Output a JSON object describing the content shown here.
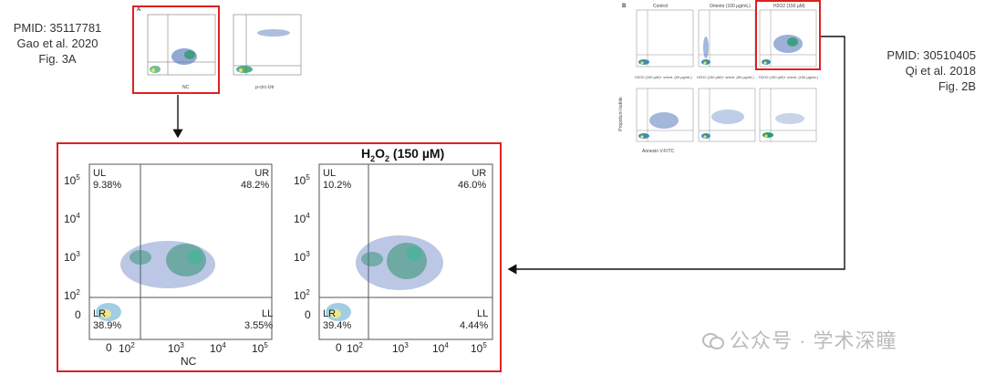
{
  "left_citation": {
    "pmid": "PMID: 35117781",
    "author": "Gao et al. 2020",
    "figure": "Fig. 3A"
  },
  "right_citation": {
    "pmid": "PMID: 30510405",
    "author": "Qi et al. 2018",
    "figure": "Fig. 2B"
  },
  "left_thumb": {
    "panel_letter": "A",
    "plot1": {
      "ul": "UL 9.38%",
      "ur": "UR 48.2%",
      "ll": "LR 38.9%",
      "lr": "LL 3.55%",
      "xlabel": "NC"
    },
    "plot2": {
      "ul": "UL 0.00%",
      "ur": "UR 0.00%",
      "ll": "LR",
      "lr": "LL 0.00%",
      "xlabel": "p-circ-Utr"
    }
  },
  "right_thumb": {
    "panel_letter": "B",
    "top_titles": [
      "Control",
      "Oriento (100 µg/mL)",
      "H2O2 (150 µM)"
    ],
    "bottom_titles": [
      "H2O2 (150 µM)+ orient. (50 µg/mL)",
      "H2O2 (150 µM)+ orient. (80 µg/mL)",
      "H2O2 (150 µM)+ orient. (150 µg/mL)"
    ],
    "xlabel": "Annexin V-FITC",
    "ylabel": "Propidium Iodide"
  },
  "zoom": {
    "title_main": "H",
    "title_sub1": "2",
    "title_mid": "O",
    "title_sub2": "2",
    "title_rest": " (150 µM)",
    "plot1": {
      "ul_label": "UL",
      "ul_value": "9.38%",
      "ur_label": "UR",
      "ur_value": "48.2%",
      "ll_label": "LR",
      "ll_value": "38.9%",
      "lr_label": "LL",
      "lr_value": "3.55%",
      "xlabel": "NC"
    },
    "plot2": {
      "ul_label": "UL",
      "ul_value": "10.2%",
      "ur_label": "UR",
      "ur_value": "46.0%",
      "ll_label": "LR",
      "ll_value": "39.4%",
      "lr_label": "LL",
      "lr_value": "4.44%"
    },
    "yticks": [
      "10",
      "10",
      "10",
      "10",
      "0"
    ],
    "ytick_exp": [
      "5",
      "4",
      "3",
      "2",
      ""
    ],
    "xticks": [
      "0",
      "10",
      "10",
      "10",
      "10"
    ],
    "xtick_exp": [
      "",
      "2",
      "3",
      "4",
      "5"
    ]
  },
  "watermark": "公众号 · 学术深瞳",
  "colors": {
    "highlight": "#e02020",
    "arrow": "#111111"
  }
}
